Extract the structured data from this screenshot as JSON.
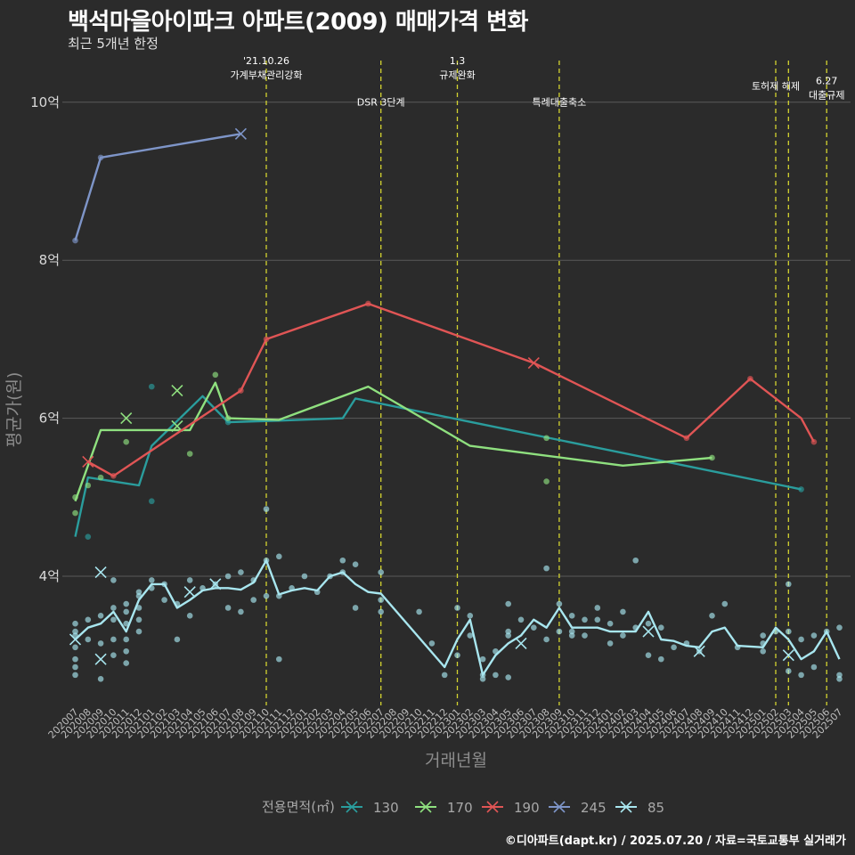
{
  "header": {
    "title": "백석마을아이파크 아파트(2009) 매매가격 변화",
    "subtitle": "최근 5개년 한정"
  },
  "footer": {
    "caption": "©디아파트(dapt.kr) / 2025.07.20 / 자료=국토교통부 실거래가"
  },
  "chart_data": {
    "type": "line",
    "xlabel": "거래년월",
    "ylabel": "평균가(원)",
    "ylim": [
      2.4,
      10.6
    ],
    "y_ticks": [
      {
        "value": 4,
        "label": "4억"
      },
      {
        "value": 6,
        "label": "6억"
      },
      {
        "value": 8,
        "label": "8억"
      },
      {
        "value": 10,
        "label": "10억"
      }
    ],
    "categories": [
      "202007",
      "202008",
      "202009",
      "202010",
      "202011",
      "202012",
      "202101",
      "202102",
      "202103",
      "202104",
      "202105",
      "202106",
      "202107",
      "202108",
      "202109",
      "202110",
      "202111",
      "202112",
      "202201",
      "202202",
      "202203",
      "202204",
      "202205",
      "202206",
      "202207",
      "202208",
      "202209",
      "202210",
      "202211",
      "202212",
      "202301",
      "202302",
      "202303",
      "202304",
      "202305",
      "202306",
      "202307",
      "202308",
      "202309",
      "202310",
      "202311",
      "202312",
      "202401",
      "202402",
      "202403",
      "202404",
      "202405",
      "202406",
      "202407",
      "202408",
      "202409",
      "202410",
      "202411",
      "202412",
      "202501",
      "202502",
      "202503",
      "202504",
      "202505",
      "202506",
      "202507"
    ],
    "events": [
      {
        "x": 15,
        "lines": [
          "'21.10.26",
          "가계부채관리강화"
        ],
        "y": 10.3
      },
      {
        "x": 24,
        "lines": [
          "DSR 3단계"
        ],
        "y": 9.96
      },
      {
        "x": 30,
        "lines": [
          "1.3",
          "규제완화"
        ],
        "y": 10.3
      },
      {
        "x": 38,
        "lines": [
          "특례대출축소"
        ],
        "y": 9.96
      },
      {
        "x": 55,
        "lines": [
          "토허제 해제"
        ],
        "y": 10.16
      },
      {
        "x": 56,
        "lines": [],
        "y": 10.16
      },
      {
        "x": 59,
        "lines": [
          "6.27",
          "대출규제"
        ],
        "y": 10.05
      }
    ],
    "legend_title": "전용면적(㎡)",
    "series": [
      {
        "name": "130",
        "color": "#2a9d9d",
        "line": [
          [
            0,
            4.5
          ],
          [
            1,
            5.25
          ],
          [
            5,
            5.15
          ],
          [
            6,
            5.65
          ],
          [
            10,
            6.28
          ],
          [
            12,
            5.95
          ],
          [
            16,
            5.97
          ],
          [
            21,
            6.0
          ],
          [
            22,
            6.25
          ],
          [
            57,
            5.1
          ]
        ],
        "points": [
          [
            1,
            4.5
          ],
          [
            6,
            6.4
          ],
          [
            6,
            4.95
          ],
          [
            12,
            5.95
          ],
          [
            57,
            5.1
          ]
        ],
        "crosses": [
          [
            8,
            5.9
          ]
        ]
      },
      {
        "name": "170",
        "color": "#8fe07f",
        "line": [
          [
            0,
            4.95
          ],
          [
            2,
            5.85
          ],
          [
            7,
            5.85
          ],
          [
            9,
            5.85
          ],
          [
            11,
            6.45
          ],
          [
            12,
            6.0
          ],
          [
            16,
            5.98
          ],
          [
            23,
            6.4
          ],
          [
            31,
            5.65
          ],
          [
            43,
            5.4
          ],
          [
            50,
            5.5
          ]
        ],
        "points": [
          [
            0,
            5.0
          ],
          [
            0,
            4.8
          ],
          [
            1,
            5.15
          ],
          [
            2,
            5.25
          ],
          [
            4,
            5.7
          ],
          [
            9,
            5.55
          ],
          [
            11,
            6.55
          ],
          [
            12,
            6.0
          ],
          [
            37,
            5.75
          ],
          [
            37,
            5.2
          ],
          [
            50,
            5.5
          ]
        ],
        "crosses": [
          [
            4,
            6.0
          ],
          [
            8,
            5.9
          ],
          [
            8,
            6.35
          ]
        ]
      },
      {
        "name": "190",
        "color": "#e05555",
        "line": [
          [
            1,
            5.45
          ],
          [
            3,
            5.27
          ],
          [
            13,
            6.35
          ],
          [
            15,
            7.0
          ],
          [
            23,
            7.45
          ],
          [
            36,
            6.7
          ],
          [
            48,
            5.75
          ],
          [
            53,
            6.5
          ],
          [
            57,
            6.0
          ],
          [
            58,
            5.7
          ]
        ],
        "points": [
          [
            3,
            5.27
          ],
          [
            13,
            6.35
          ],
          [
            15,
            7.0
          ],
          [
            23,
            7.45
          ],
          [
            48,
            5.75
          ],
          [
            53,
            6.5
          ],
          [
            58,
            5.7
          ]
        ],
        "crosses": [
          [
            1,
            5.45
          ],
          [
            36,
            6.7
          ]
        ]
      },
      {
        "name": "245",
        "color": "#7e95c8",
        "line": [
          [
            0,
            8.25
          ],
          [
            2,
            9.3
          ],
          [
            13,
            9.6
          ]
        ],
        "points": [
          [
            0,
            8.25
          ],
          [
            2,
            9.3
          ]
        ],
        "crosses": [
          [
            13,
            9.6
          ]
        ]
      },
      {
        "name": "85",
        "color": "#a8e6ef",
        "line": [
          [
            0,
            3.2
          ],
          [
            1,
            3.35
          ],
          [
            2,
            3.4
          ],
          [
            3,
            3.55
          ],
          [
            4,
            3.3
          ],
          [
            5,
            3.7
          ],
          [
            6,
            3.9
          ],
          [
            7,
            3.9
          ],
          [
            8,
            3.6
          ],
          [
            9,
            3.7
          ],
          [
            10,
            3.82
          ],
          [
            11,
            3.85
          ],
          [
            12,
            3.85
          ],
          [
            13,
            3.83
          ],
          [
            14,
            3.92
          ],
          [
            15,
            4.2
          ],
          [
            16,
            3.77
          ],
          [
            17,
            3.82
          ],
          [
            18,
            3.85
          ],
          [
            19,
            3.82
          ],
          [
            20,
            4.0
          ],
          [
            21,
            4.05
          ],
          [
            22,
            3.9
          ],
          [
            23,
            3.8
          ],
          [
            24,
            3.78
          ],
          [
            29,
            2.85
          ],
          [
            30,
            3.2
          ],
          [
            31,
            3.45
          ],
          [
            32,
            2.75
          ],
          [
            33,
            3.0
          ],
          [
            34,
            3.15
          ],
          [
            35,
            3.25
          ],
          [
            36,
            3.45
          ],
          [
            37,
            3.35
          ],
          [
            38,
            3.6
          ],
          [
            39,
            3.35
          ],
          [
            40,
            3.35
          ],
          [
            41,
            3.35
          ],
          [
            42,
            3.3
          ],
          [
            43,
            3.3
          ],
          [
            44,
            3.3
          ],
          [
            45,
            3.55
          ],
          [
            46,
            3.2
          ],
          [
            47,
            3.18
          ],
          [
            48,
            3.12
          ],
          [
            49,
            3.1
          ],
          [
            50,
            3.3
          ],
          [
            51,
            3.35
          ],
          [
            52,
            3.12
          ],
          [
            54,
            3.1
          ],
          [
            55,
            3.35
          ],
          [
            56,
            3.2
          ],
          [
            57,
            2.95
          ],
          [
            58,
            3.05
          ],
          [
            59,
            3.3
          ],
          [
            60,
            2.95
          ]
        ],
        "points": [
          [
            0,
            3.4
          ],
          [
            0,
            3.3
          ],
          [
            0,
            3.25
          ],
          [
            0,
            3.1
          ],
          [
            0,
            2.95
          ],
          [
            0,
            2.85
          ],
          [
            0,
            2.75
          ],
          [
            1,
            3.2
          ],
          [
            1,
            3.45
          ],
          [
            2,
            3.5
          ],
          [
            2,
            3.15
          ],
          [
            2,
            2.7
          ],
          [
            3,
            3.95
          ],
          [
            3,
            3.6
          ],
          [
            3,
            3.45
          ],
          [
            3,
            3.2
          ],
          [
            3,
            3.0
          ],
          [
            4,
            3.65
          ],
          [
            4,
            3.55
          ],
          [
            4,
            3.4
          ],
          [
            4,
            3.2
          ],
          [
            4,
            3.05
          ],
          [
            4,
            2.9
          ],
          [
            5,
            3.8
          ],
          [
            5,
            3.75
          ],
          [
            5,
            3.6
          ],
          [
            5,
            3.45
          ],
          [
            5,
            3.3
          ],
          [
            6,
            3.95
          ],
          [
            6,
            3.85
          ],
          [
            7,
            3.9
          ],
          [
            7,
            3.7
          ],
          [
            8,
            3.65
          ],
          [
            8,
            3.2
          ],
          [
            9,
            3.95
          ],
          [
            9,
            3.5
          ],
          [
            10,
            3.85
          ],
          [
            11,
            3.9
          ],
          [
            12,
            4.0
          ],
          [
            12,
            3.6
          ],
          [
            13,
            4.05
          ],
          [
            13,
            3.55
          ],
          [
            14,
            3.95
          ],
          [
            14,
            3.7
          ],
          [
            15,
            4.85
          ],
          [
            15,
            4.2
          ],
          [
            15,
            3.75
          ],
          [
            16,
            4.25
          ],
          [
            16,
            3.75
          ],
          [
            16,
            2.95
          ],
          [
            17,
            3.85
          ],
          [
            18,
            4.0
          ],
          [
            19,
            3.8
          ],
          [
            20,
            4.0
          ],
          [
            21,
            4.2
          ],
          [
            21,
            4.05
          ],
          [
            22,
            4.15
          ],
          [
            22,
            3.6
          ],
          [
            24,
            4.05
          ],
          [
            24,
            3.7
          ],
          [
            24,
            3.55
          ],
          [
            27,
            3.55
          ],
          [
            28,
            3.15
          ],
          [
            29,
            2.75
          ],
          [
            30,
            3.6
          ],
          [
            30,
            3.0
          ],
          [
            31,
            3.5
          ],
          [
            31,
            3.25
          ],
          [
            32,
            2.95
          ],
          [
            32,
            2.75
          ],
          [
            32,
            2.7
          ],
          [
            33,
            3.05
          ],
          [
            33,
            2.75
          ],
          [
            34,
            3.65
          ],
          [
            34,
            3.3
          ],
          [
            34,
            3.25
          ],
          [
            34,
            2.72
          ],
          [
            35,
            3.45
          ],
          [
            36,
            3.35
          ],
          [
            37,
            4.1
          ],
          [
            37,
            3.2
          ],
          [
            38,
            3.65
          ],
          [
            38,
            3.3
          ],
          [
            39,
            3.5
          ],
          [
            39,
            3.3
          ],
          [
            39,
            3.25
          ],
          [
            40,
            3.45
          ],
          [
            40,
            3.25
          ],
          [
            41,
            3.6
          ],
          [
            41,
            3.45
          ],
          [
            42,
            3.4
          ],
          [
            42,
            3.15
          ],
          [
            43,
            3.55
          ],
          [
            43,
            3.25
          ],
          [
            44,
            4.2
          ],
          [
            44,
            3.35
          ],
          [
            45,
            3.4
          ],
          [
            45,
            3.0
          ],
          [
            46,
            3.35
          ],
          [
            46,
            2.95
          ],
          [
            47,
            3.1
          ],
          [
            48,
            3.15
          ],
          [
            49,
            3.05
          ],
          [
            50,
            3.5
          ],
          [
            51,
            3.65
          ],
          [
            52,
            3.1
          ],
          [
            54,
            3.25
          ],
          [
            54,
            3.15
          ],
          [
            54,
            3.05
          ],
          [
            55,
            3.3
          ],
          [
            56,
            3.9
          ],
          [
            56,
            3.3
          ],
          [
            56,
            2.8
          ],
          [
            57,
            3.2
          ],
          [
            57,
            2.75
          ],
          [
            58,
            3.25
          ],
          [
            58,
            2.85
          ],
          [
            59,
            3.3
          ],
          [
            60,
            3.35
          ],
          [
            60,
            2.75
          ],
          [
            60,
            2.7
          ]
        ],
        "crosses": [
          [
            0,
            3.2
          ],
          [
            2,
            4.05
          ],
          [
            2,
            2.95
          ],
          [
            9,
            3.8
          ],
          [
            11,
            3.9
          ],
          [
            35,
            3.15
          ],
          [
            45,
            3.3
          ],
          [
            49,
            3.05
          ],
          [
            56,
            3.0
          ]
        ]
      }
    ]
  }
}
